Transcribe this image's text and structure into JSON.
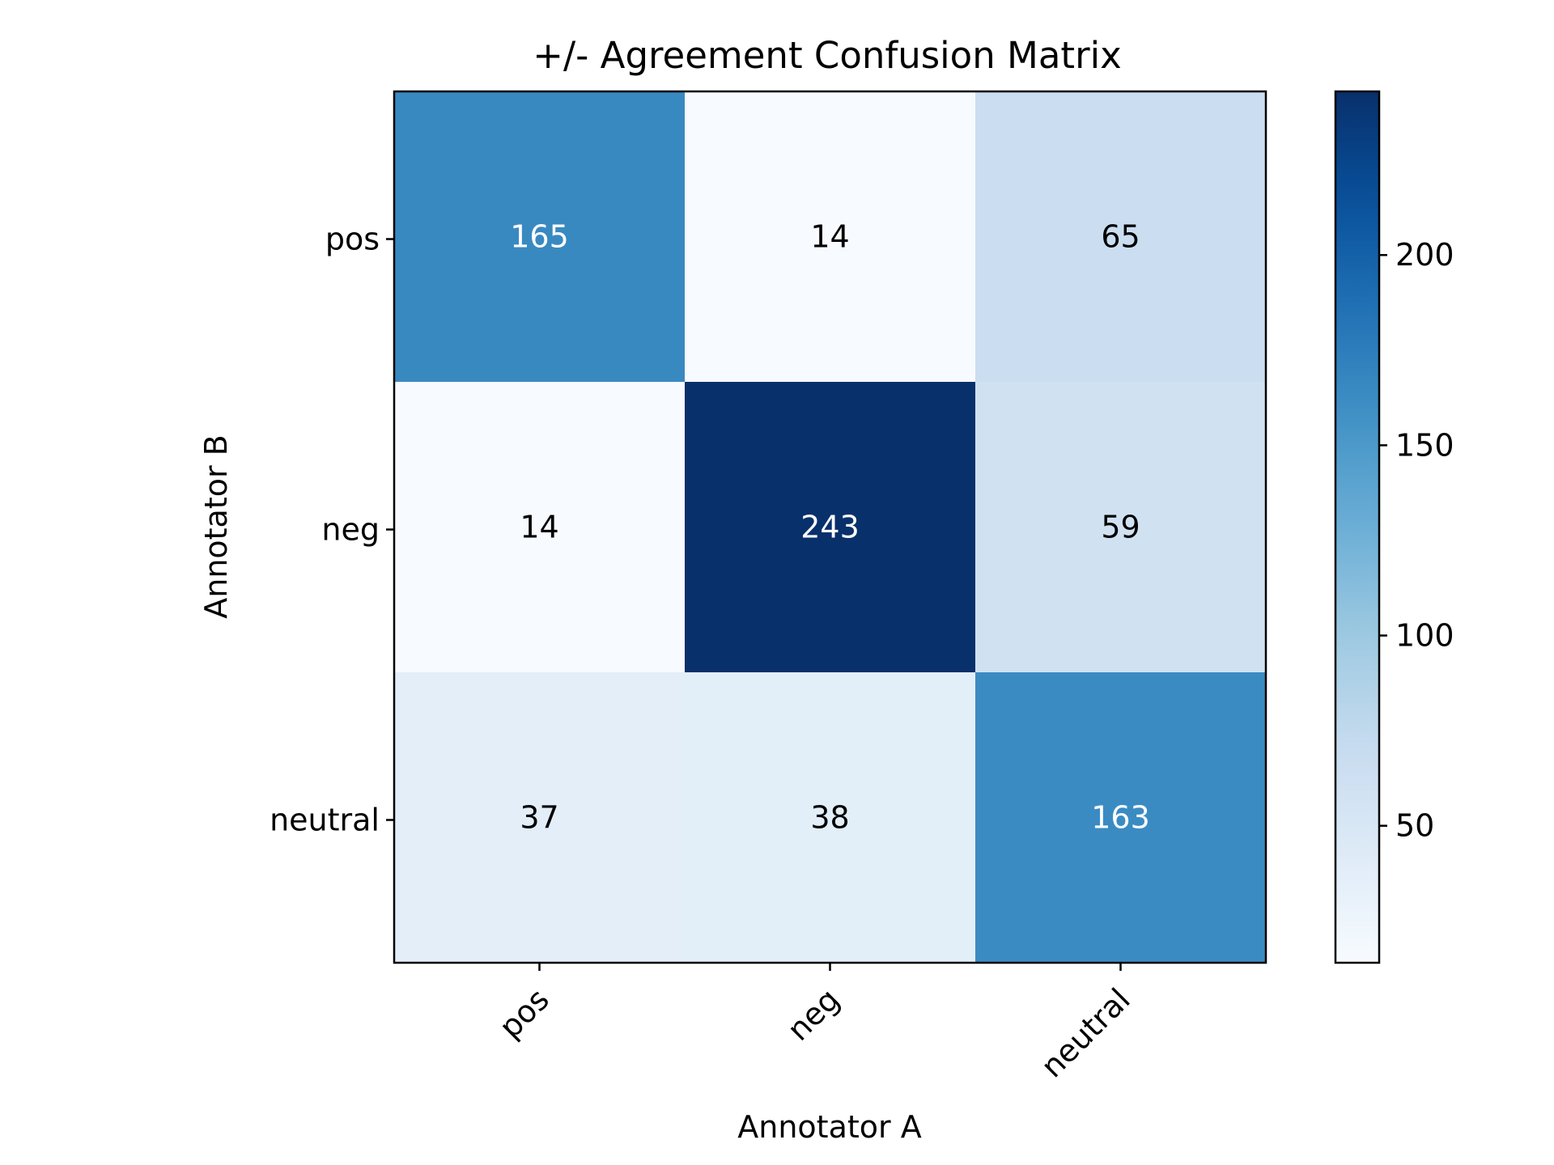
{
  "chart_data": {
    "type": "heatmap",
    "title": "+/- Agreement Confusion Matrix",
    "xlabel": "Annotator A",
    "ylabel": "Annotator B",
    "x_categories": [
      "pos",
      "neg",
      "neutral"
    ],
    "y_categories": [
      "pos",
      "neg",
      "neutral"
    ],
    "values": [
      [
        165,
        14,
        65
      ],
      [
        14,
        243,
        59
      ],
      [
        37,
        38,
        163
      ]
    ],
    "colormap": "Blues",
    "color_range": [
      14,
      243
    ],
    "colorbar_ticks": [
      50,
      100,
      150,
      200
    ],
    "grid": false
  }
}
